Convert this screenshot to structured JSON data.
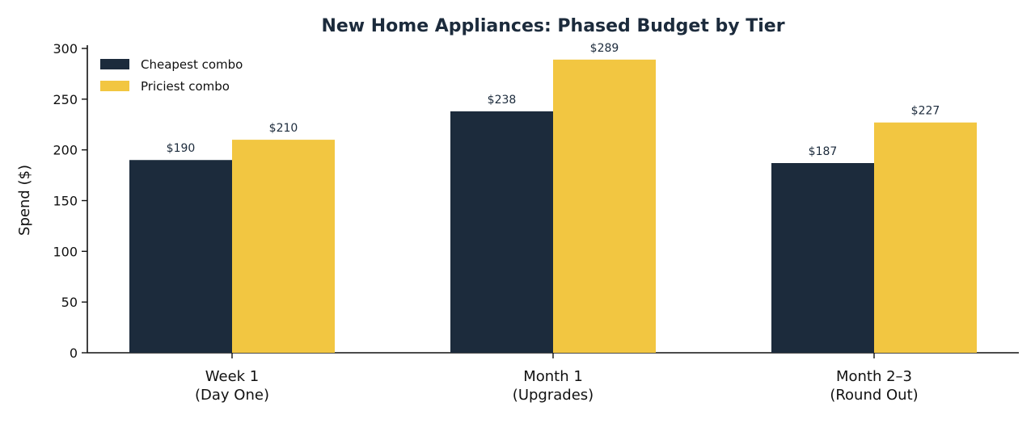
{
  "chart_data": {
    "type": "bar",
    "title": "New Home Appliances: Phased Budget by Tier",
    "xlabel": "",
    "ylabel": "Spend ($)",
    "ylim": [
      0,
      300
    ],
    "yticks": [
      0,
      50,
      100,
      150,
      200,
      250,
      300
    ],
    "categories": [
      [
        "Week 1",
        "(Day One)"
      ],
      [
        "Month 1",
        "(Upgrades)"
      ],
      [
        "Month 2–3",
        "(Round Out)"
      ]
    ],
    "series": [
      {
        "name": "Cheapest combo",
        "values": [
          190,
          238,
          187
        ],
        "labels": [
          "$190",
          "$238",
          "$187"
        ],
        "color": "#1c2b3c"
      },
      {
        "name": "Priciest combo",
        "values": [
          210,
          289,
          227
        ],
        "labels": [
          "$210",
          "$289",
          "$227"
        ],
        "color": "#f2c641"
      }
    ],
    "grid": false,
    "legend_position": "top-left",
    "title_color": "#1c2b3c",
    "data_label_color": "#1c2b3c"
  }
}
